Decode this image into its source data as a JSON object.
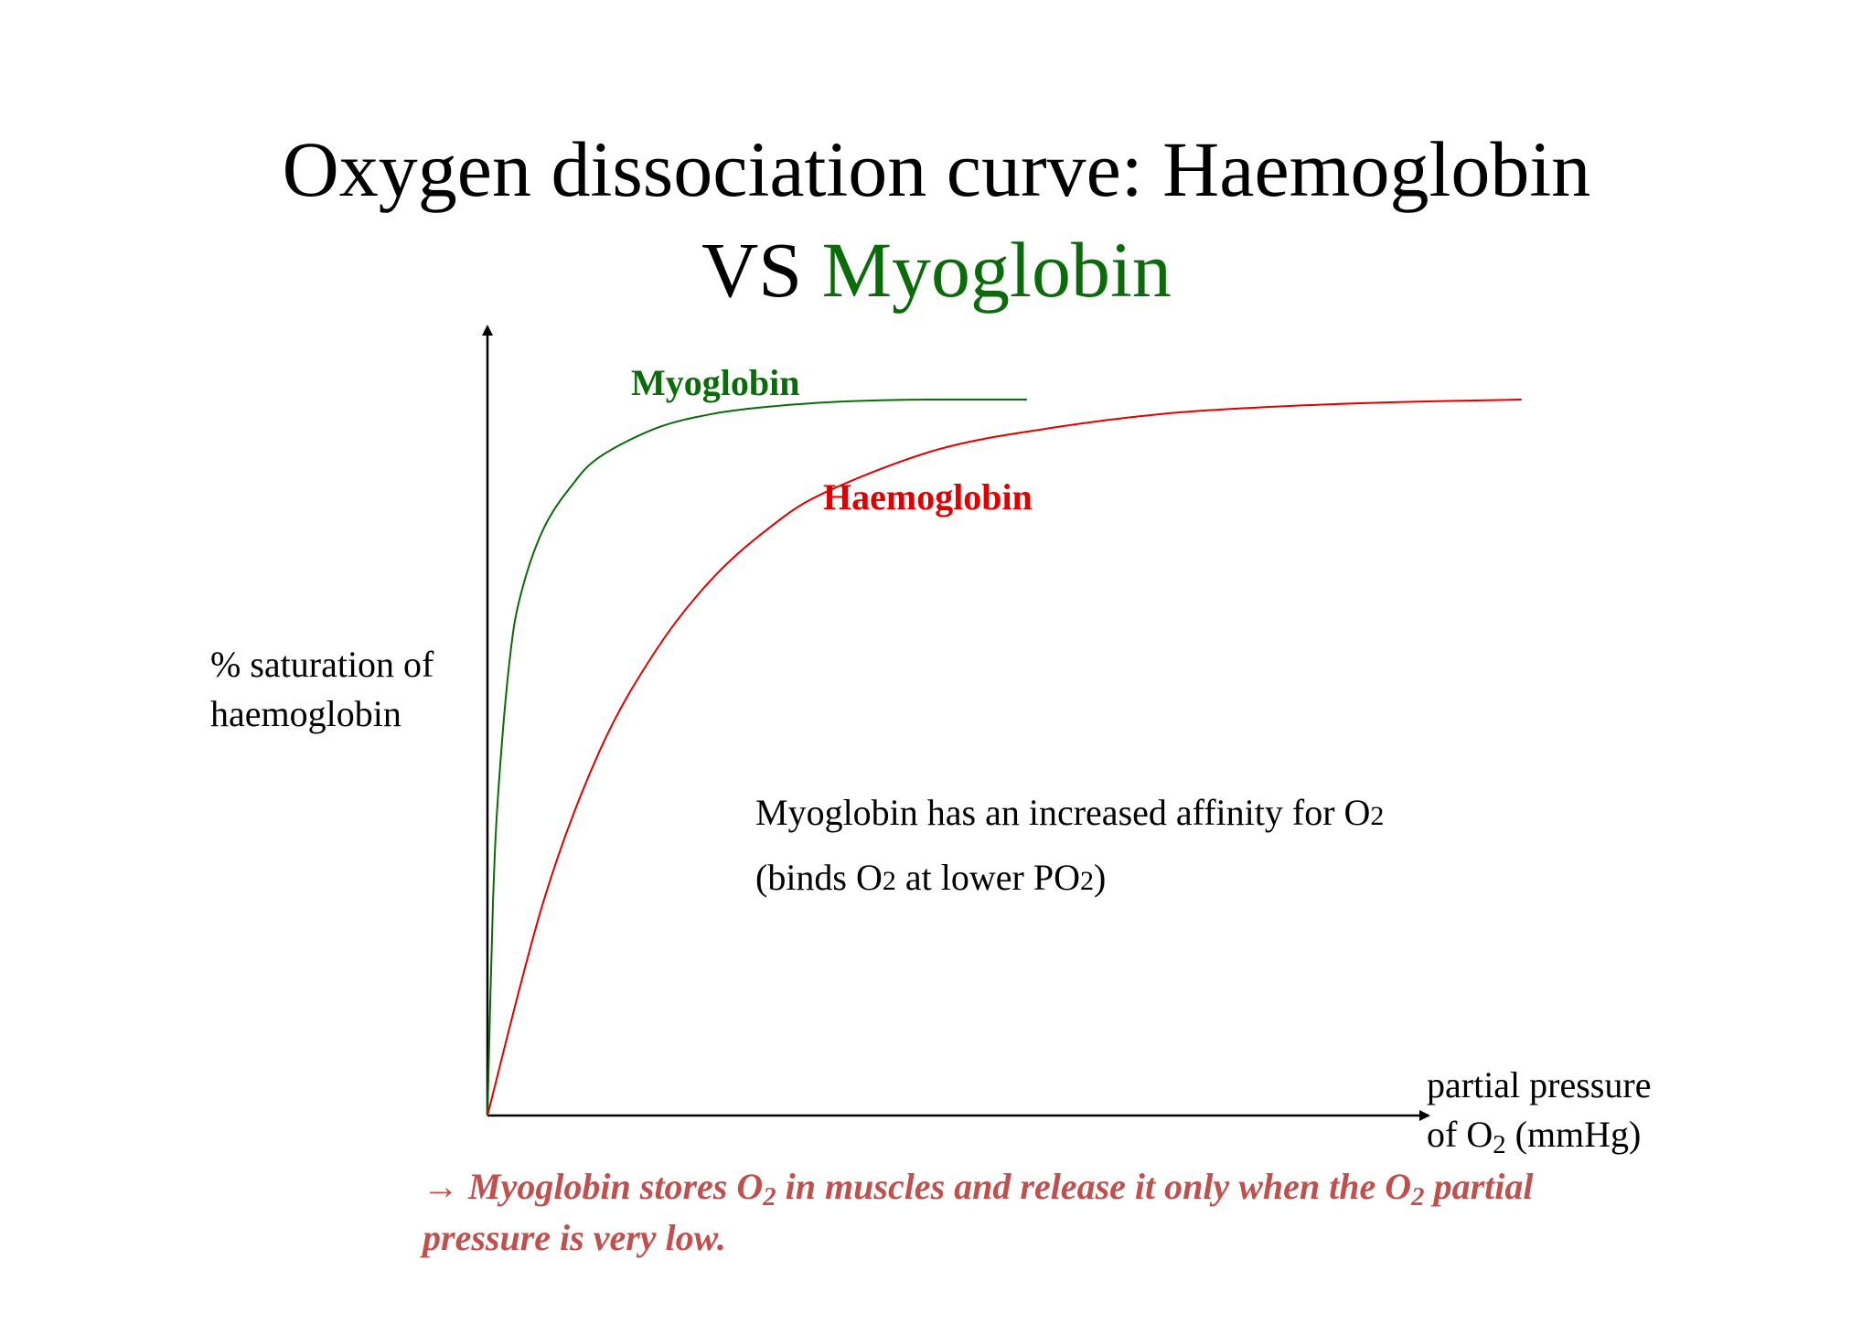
{
  "slide": {
    "title_line1": "Oxygen dissociation curve: Haemoglobin",
    "title_vs": "VS",
    "title_green": "Myoglobin",
    "note": {
      "line1_text": "Myoglobin has an increased affinity for O",
      "line1_sub": "2",
      "line2_part1": "(binds O",
      "line2_sub1": "2",
      "line2_part2": " at lower P",
      "line2_big_o": "O",
      "line2_sub2": "2",
      "line2_part3": ")"
    },
    "conclusion": {
      "part1": "→ Myoglobin stores O",
      "sub1": "2",
      "part2": " in muscles and release it only when the O",
      "sub2": "2",
      "part3": " partial pressure is very low."
    }
  },
  "chart_data": {
    "type": "line",
    "ylabel_line1": "% saturation of",
    "ylabel_line2": "haemoglobin",
    "xlabel_line1": "partial pressure",
    "xlabel_line2_part1": "of O",
    "xlabel_line2_sub": "2",
    "xlabel_line2_part2": " (mmHg)",
    "xlim": [
      0,
      100
    ],
    "ylim": [
      0,
      100
    ],
    "ticks": "none",
    "grid": false,
    "series": [
      {
        "name": "Myoglobin",
        "color": "#0b6b0b",
        "x": [
          0,
          0.5,
          1,
          2,
          3,
          5,
          7.5,
          10,
          15,
          20,
          25,
          30,
          35,
          40,
          48
        ],
        "y": [
          0,
          30,
          46,
          64,
          73,
          82,
          88,
          92,
          96,
          98,
          99,
          99.6,
          99.9,
          100,
          100
        ]
      },
      {
        "name": "Haemoglobin",
        "color": "#e00000",
        "x": [
          0,
          5,
          10,
          15,
          20,
          25,
          30,
          40,
          50,
          60,
          70,
          80,
          92
        ],
        "y": [
          0,
          30,
          51,
          65,
          75,
          82,
          87,
          93,
          96,
          98,
          99,
          99.6,
          100
        ]
      }
    ]
  }
}
